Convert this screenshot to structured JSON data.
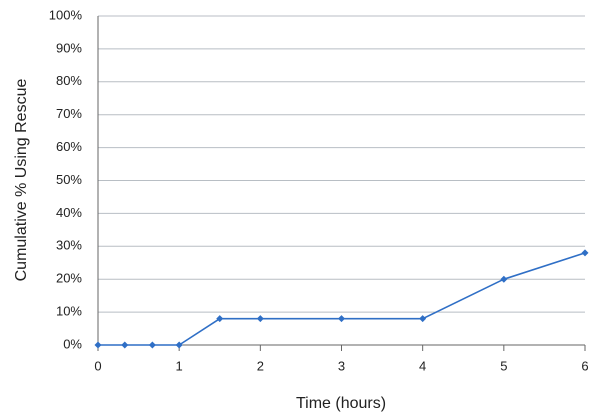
{
  "chart_data": {
    "type": "line",
    "x_label": "Time (hours)",
    "y_label": "Cumulative % Using Rescue",
    "x": [
      0,
      0.33,
      0.67,
      1,
      1.5,
      2,
      3,
      4,
      5,
      6
    ],
    "series": [
      {
        "color": "#2f6fc6",
        "values": [
          0,
          0,
          0,
          0,
          8,
          8,
          8,
          8,
          20,
          28
        ]
      }
    ],
    "xlim": [
      0,
      6
    ],
    "xticks": [
      0,
      1,
      2,
      3,
      4,
      5,
      6
    ],
    "ylim": [
      0,
      100
    ],
    "yticks": [
      {
        "value": 0,
        "label": "0%"
      },
      {
        "value": 10,
        "label": "10%"
      },
      {
        "value": 20,
        "label": "20%"
      },
      {
        "value": 30,
        "label": "30%"
      },
      {
        "value": 40,
        "label": "40%"
      },
      {
        "value": 50,
        "label": "50%"
      },
      {
        "value": 60,
        "label": "60%"
      },
      {
        "value": 70,
        "label": "70%"
      },
      {
        "value": 80,
        "label": "80%"
      },
      {
        "value": 90,
        "label": "90%"
      },
      {
        "value": 100,
        "label": "100%"
      }
    ],
    "grid": true
  }
}
